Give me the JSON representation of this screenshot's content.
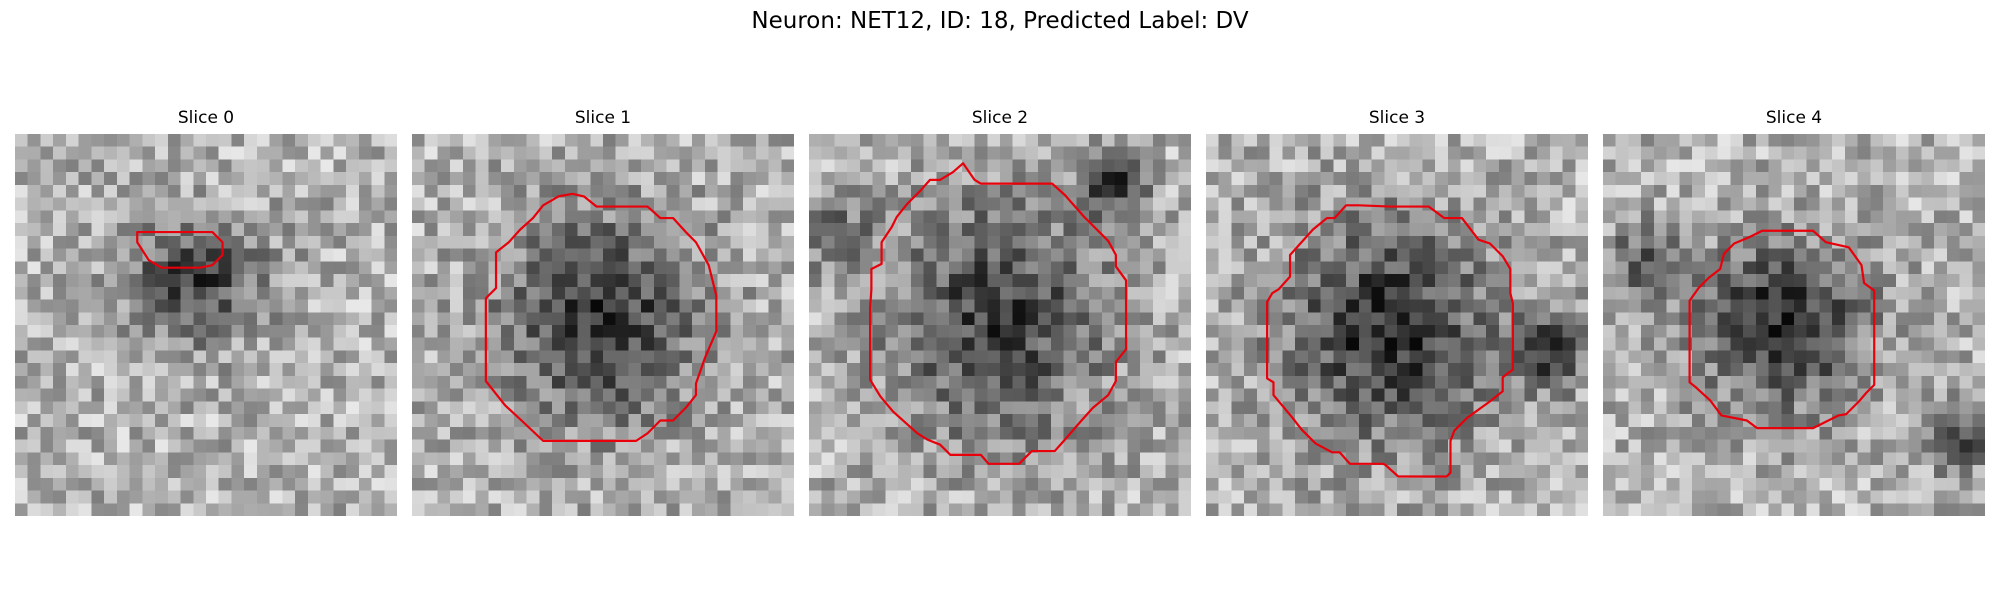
{
  "figure": {
    "title": "Neuron: NET12, ID: 18, Predicted Label: DV"
  },
  "panels": [
    {
      "title": "Slice 0",
      "outline_color": "#e8000b"
    },
    {
      "title": "Slice 1",
      "outline_color": "#e8000b"
    },
    {
      "title": "Slice 2",
      "outline_color": "#e8000b"
    },
    {
      "title": "Slice 3",
      "outline_color": "#e8000b"
    },
    {
      "title": "Slice 4",
      "outline_color": "#e8000b"
    }
  ],
  "colormap": "gray"
}
